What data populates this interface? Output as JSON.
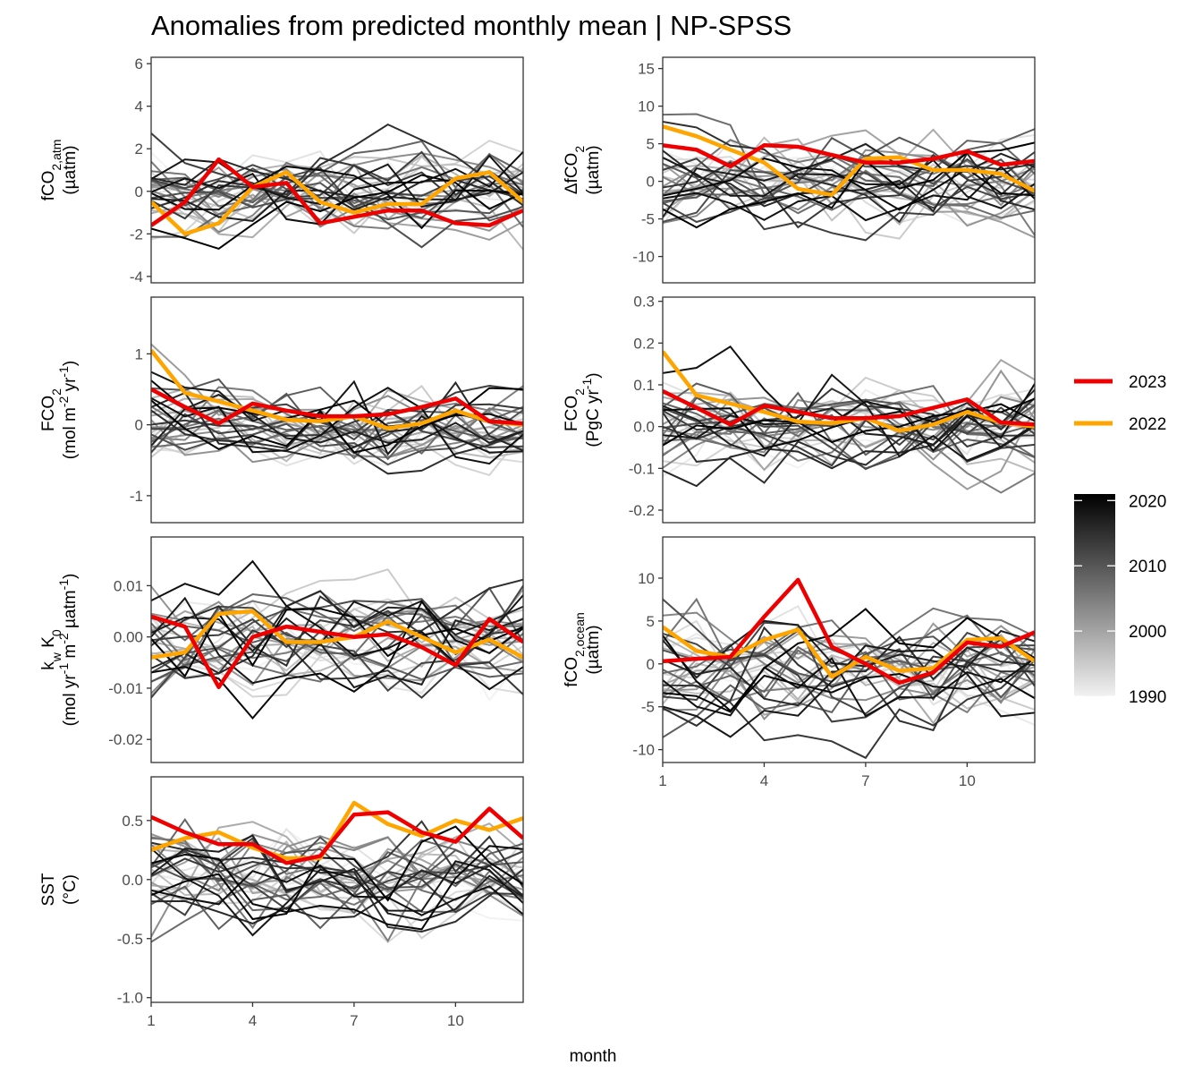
{
  "title": "Anomalies from predicted monthly mean | NP-SPSS",
  "x_axis": {
    "label": "month",
    "ticks": [
      1,
      4,
      7,
      10
    ]
  },
  "legend": {
    "lines": [
      {
        "label": "2023",
        "color": "#ee0000"
      },
      {
        "label": "2022",
        "color": "#ffa500"
      }
    ],
    "colorbar": {
      "ticks": [
        "2020",
        "2010",
        "2000",
        "1990"
      ],
      "range": [
        1990,
        2021
      ],
      "colors": [
        "#f2f2f2",
        "#000000"
      ]
    }
  },
  "series_colors": {
    "2023": "#ee0000",
    "2022": "#ffa500"
  },
  "chart_data": [
    {
      "type": "line",
      "panel": "fCO2-atm",
      "ylabel_lines": [
        "fCO2,atm",
        "(µatm)"
      ],
      "ylim": [
        -4.3,
        6.3
      ],
      "yticks": [
        "6",
        "4",
        "2",
        "0",
        "-2",
        "-4"
      ],
      "x": [
        1,
        2,
        3,
        4,
        5,
        6,
        7,
        8,
        9,
        10,
        11,
        12
      ],
      "series": [
        {
          "name": "2023",
          "values": [
            -1.6,
            -0.5,
            1.5,
            0.2,
            0.4,
            -1.5,
            -1.2,
            -0.9,
            -0.9,
            -1.5,
            -1.6,
            -0.9
          ]
        },
        {
          "name": "2022",
          "values": [
            -0.5,
            -2.0,
            -1.5,
            0.2,
            0.9,
            -0.5,
            -1.0,
            -0.6,
            -0.6,
            0.6,
            0.9,
            -0.5
          ]
        }
      ]
    },
    {
      "type": "line",
      "panel": "delta-fCO2",
      "ylabel_lines": [
        "ΔfCO2",
        "(µatm)"
      ],
      "ylim": [
        -13.5,
        16.5
      ],
      "yticks": [
        "15",
        "10",
        "5",
        "0",
        "-5",
        "-10"
      ],
      "x": [
        1,
        2,
        3,
        4,
        5,
        6,
        7,
        8,
        9,
        10,
        11,
        12
      ],
      "series": [
        {
          "name": "2023",
          "values": [
            4.8,
            4.2,
            2.0,
            4.8,
            4.6,
            3.5,
            2.5,
            2.5,
            3.0,
            4.0,
            2.2,
            2.7
          ]
        },
        {
          "name": "2022",
          "values": [
            7.3,
            6.0,
            4.2,
            2.5,
            -1.0,
            -1.8,
            3.0,
            3.2,
            1.5,
            1.5,
            1.0,
            -1.3
          ]
        }
      ]
    },
    {
      "type": "line",
      "panel": "FCO2-flux-density",
      "ylabel_lines": [
        "FCO2",
        "(mol m-2 yr-1)"
      ],
      "ylim": [
        -1.38,
        1.8
      ],
      "yticks": [
        "1",
        "0",
        "-1"
      ],
      "x": [
        1,
        2,
        3,
        4,
        5,
        6,
        7,
        8,
        9,
        10,
        11,
        12
      ],
      "series": [
        {
          "name": "2023",
          "values": [
            0.5,
            0.25,
            0.02,
            0.3,
            0.2,
            0.12,
            0.12,
            0.15,
            0.25,
            0.37,
            0.05,
            0.02
          ]
        },
        {
          "name": "2022",
          "values": [
            1.05,
            0.45,
            0.33,
            0.2,
            0.07,
            0.05,
            0.12,
            -0.05,
            0.02,
            0.2,
            0.05,
            0.0
          ]
        }
      ]
    },
    {
      "type": "line",
      "panel": "FCO2-integrated",
      "ylabel_lines": [
        "FCO2",
        "(PgC yr-1)"
      ],
      "ylim": [
        -0.23,
        0.31
      ],
      "yticks": [
        "0.3",
        "0.2",
        "0.1",
        "0.0",
        "-0.1",
        "-0.2"
      ],
      "x": [
        1,
        2,
        3,
        4,
        5,
        6,
        7,
        8,
        9,
        10,
        11,
        12
      ],
      "series": [
        {
          "name": "2023",
          "values": [
            0.085,
            0.045,
            0.005,
            0.05,
            0.035,
            0.02,
            0.02,
            0.025,
            0.045,
            0.065,
            0.01,
            0.005
          ]
        },
        {
          "name": "2022",
          "values": [
            0.18,
            0.075,
            0.055,
            0.035,
            0.012,
            0.008,
            0.02,
            -0.01,
            0.005,
            0.035,
            0.01,
            0.0
          ]
        }
      ]
    },
    {
      "type": "line",
      "panel": "kw-K0",
      "ylabel_lines": [
        "kw K0",
        "(mol yr-1 m-2 µatm-1)"
      ],
      "ylim": [
        -0.0245,
        0.0195
      ],
      "yticks": [
        "0.01",
        "0.00",
        "-0.01",
        "-0.02"
      ],
      "x": [
        1,
        2,
        3,
        4,
        5,
        6,
        7,
        8,
        9,
        10,
        11,
        12
      ],
      "series": [
        {
          "name": "2023",
          "values": [
            0.004,
            0.002,
            -0.0098,
            0.0,
            0.002,
            0.001,
            0.0,
            0.0005,
            -0.002,
            -0.0055,
            0.0035,
            -0.001
          ]
        },
        {
          "name": "2022",
          "values": [
            -0.004,
            -0.003,
            0.0045,
            0.005,
            -0.001,
            -0.001,
            0.0,
            0.003,
            0.0,
            -0.003,
            -0.0005,
            -0.004
          ]
        }
      ]
    },
    {
      "type": "line",
      "panel": "fCO2-ocean",
      "ylabel_lines": [
        "fCO2,ocean",
        "(µatm)"
      ],
      "ylim": [
        -11.5,
        14.8
      ],
      "yticks": [
        "10",
        "5",
        "0",
        "-5",
        "-10"
      ],
      "x": [
        1,
        2,
        3,
        4,
        5,
        6,
        7,
        8,
        9,
        10,
        11,
        12
      ],
      "series": [
        {
          "name": "2023",
          "values": [
            0.3,
            0.6,
            0.8,
            5.5,
            9.8,
            2.0,
            0.0,
            -2.2,
            -1.0,
            2.5,
            2.0,
            3.7
          ]
        },
        {
          "name": "2022",
          "values": [
            4.3,
            1.5,
            0.8,
            2.8,
            4.0,
            -1.5,
            0.8,
            -0.8,
            -0.5,
            2.8,
            3.0,
            0.3
          ]
        }
      ]
    },
    {
      "type": "line",
      "panel": "SST",
      "ylabel_lines": [
        "SST",
        "(°C)"
      ],
      "ylim": [
        -1.04,
        0.87
      ],
      "yticks": [
        "0.5",
        "0.0",
        "-0.5",
        "-1.0"
      ],
      "x": [
        1,
        2,
        3,
        4,
        5,
        6,
        7,
        8,
        9,
        10,
        11,
        12
      ],
      "series": [
        {
          "name": "2023",
          "values": [
            0.53,
            0.4,
            0.3,
            0.3,
            0.14,
            0.2,
            0.55,
            0.57,
            0.4,
            0.32,
            0.6,
            0.35
          ]
        },
        {
          "name": "2022",
          "values": [
            0.25,
            0.35,
            0.4,
            0.27,
            0.18,
            0.18,
            0.65,
            0.47,
            0.37,
            0.5,
            0.42,
            0.52
          ]
        }
      ]
    }
  ]
}
